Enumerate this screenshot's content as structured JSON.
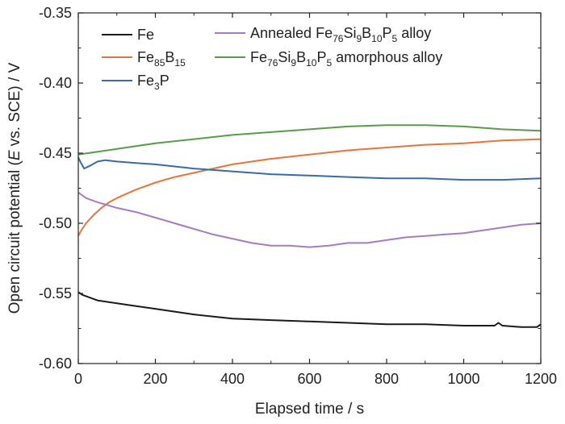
{
  "chart_data": {
    "type": "line",
    "xlabel": "Elapsed time / s",
    "ylabel_parts": [
      {
        "t": "Open circuit potential ("
      },
      {
        "t": "E",
        "italic": true
      },
      {
        "t": " vs. SCE) / V"
      }
    ],
    "xlim": [
      0,
      1200
    ],
    "ylim": [
      -0.6,
      -0.35
    ],
    "x_ticks": [
      0,
      200,
      400,
      600,
      800,
      1000,
      1200
    ],
    "y_ticks": [
      -0.6,
      -0.55,
      -0.5,
      -0.45,
      -0.4,
      -0.35
    ],
    "x_tick_labels": [
      "0",
      "200",
      "400",
      "600",
      "800",
      "1000",
      "1200"
    ],
    "y_tick_labels": [
      "-0.60",
      "-0.55",
      "-0.50",
      "-0.45",
      "-0.40",
      "-0.35"
    ],
    "grid": false,
    "legend_position": "top",
    "series": [
      {
        "id": "fe",
        "label_parts": [
          {
            "t": "Fe"
          }
        ],
        "color": "#1a1a1a",
        "points": [
          [
            0,
            -0.549
          ],
          [
            10,
            -0.551
          ],
          [
            30,
            -0.553
          ],
          [
            50,
            -0.555
          ],
          [
            100,
            -0.557
          ],
          [
            150,
            -0.559
          ],
          [
            200,
            -0.561
          ],
          [
            300,
            -0.565
          ],
          [
            400,
            -0.568
          ],
          [
            500,
            -0.569
          ],
          [
            600,
            -0.57
          ],
          [
            700,
            -0.571
          ],
          [
            800,
            -0.572
          ],
          [
            900,
            -0.572
          ],
          [
            1000,
            -0.573
          ],
          [
            1080,
            -0.573
          ],
          [
            1090,
            -0.571
          ],
          [
            1100,
            -0.573
          ],
          [
            1150,
            -0.574
          ],
          [
            1190,
            -0.574
          ],
          [
            1200,
            -0.572
          ]
        ]
      },
      {
        "id": "fe85b15",
        "label_parts": [
          {
            "t": "Fe"
          },
          {
            "t": "85",
            "sub": true
          },
          {
            "t": "B"
          },
          {
            "t": "15",
            "sub": true
          }
        ],
        "color": "#e8743b",
        "points": [
          [
            0,
            -0.509
          ],
          [
            10,
            -0.504
          ],
          [
            20,
            -0.5
          ],
          [
            40,
            -0.494
          ],
          [
            60,
            -0.489
          ],
          [
            80,
            -0.485
          ],
          [
            100,
            -0.482
          ],
          [
            150,
            -0.476
          ],
          [
            200,
            -0.471
          ],
          [
            250,
            -0.467
          ],
          [
            300,
            -0.464
          ],
          [
            350,
            -0.461
          ],
          [
            400,
            -0.458
          ],
          [
            500,
            -0.454
          ],
          [
            600,
            -0.451
          ],
          [
            700,
            -0.448
          ],
          [
            800,
            -0.446
          ],
          [
            900,
            -0.444
          ],
          [
            1000,
            -0.443
          ],
          [
            1100,
            -0.441
          ],
          [
            1200,
            -0.44
          ]
        ]
      },
      {
        "id": "fe3p",
        "label_parts": [
          {
            "t": "Fe"
          },
          {
            "t": "3",
            "sub": true
          },
          {
            "t": "P"
          }
        ],
        "color": "#3a6aa8",
        "points": [
          [
            0,
            -0.453
          ],
          [
            5,
            -0.456
          ],
          [
            15,
            -0.461
          ],
          [
            30,
            -0.459
          ],
          [
            50,
            -0.456
          ],
          [
            70,
            -0.455
          ],
          [
            100,
            -0.456
          ],
          [
            150,
            -0.457
          ],
          [
            200,
            -0.458
          ],
          [
            300,
            -0.461
          ],
          [
            400,
            -0.463
          ],
          [
            500,
            -0.465
          ],
          [
            600,
            -0.466
          ],
          [
            700,
            -0.467
          ],
          [
            800,
            -0.468
          ],
          [
            900,
            -0.468
          ],
          [
            1000,
            -0.469
          ],
          [
            1100,
            -0.469
          ],
          [
            1200,
            -0.468
          ]
        ]
      },
      {
        "id": "annealed",
        "label_parts": [
          {
            "t": "Annealed Fe"
          },
          {
            "t": "76",
            "sub": true
          },
          {
            "t": "Si"
          },
          {
            "t": "9",
            "sub": true
          },
          {
            "t": "B"
          },
          {
            "t": "10",
            "sub": true
          },
          {
            "t": "P"
          },
          {
            "t": "5",
            "sub": true
          },
          {
            "t": " alloy"
          }
        ],
        "color": "#a57cc4",
        "points": [
          [
            0,
            -0.478
          ],
          [
            20,
            -0.482
          ],
          [
            50,
            -0.485
          ],
          [
            100,
            -0.489
          ],
          [
            150,
            -0.492
          ],
          [
            200,
            -0.496
          ],
          [
            250,
            -0.5
          ],
          [
            300,
            -0.504
          ],
          [
            350,
            -0.508
          ],
          [
            400,
            -0.511
          ],
          [
            450,
            -0.514
          ],
          [
            500,
            -0.516
          ],
          [
            550,
            -0.516
          ],
          [
            600,
            -0.517
          ],
          [
            650,
            -0.516
          ],
          [
            700,
            -0.514
          ],
          [
            750,
            -0.514
          ],
          [
            800,
            -0.512
          ],
          [
            850,
            -0.51
          ],
          [
            900,
            -0.509
          ],
          [
            950,
            -0.508
          ],
          [
            1000,
            -0.507
          ],
          [
            1050,
            -0.505
          ],
          [
            1100,
            -0.503
          ],
          [
            1150,
            -0.501
          ],
          [
            1200,
            -0.5
          ]
        ]
      },
      {
        "id": "amorphous",
        "label_parts": [
          {
            "t": "Fe"
          },
          {
            "t": "76",
            "sub": true
          },
          {
            "t": "Si"
          },
          {
            "t": "9",
            "sub": true
          },
          {
            "t": "B"
          },
          {
            "t": "10",
            "sub": true
          },
          {
            "t": "P"
          },
          {
            "t": "5",
            "sub": true
          },
          {
            "t": " amorphous alloy"
          }
        ],
        "color": "#5a9a4c",
        "points": [
          [
            0,
            -0.451
          ],
          [
            50,
            -0.449
          ],
          [
            100,
            -0.447
          ],
          [
            200,
            -0.443
          ],
          [
            300,
            -0.44
          ],
          [
            400,
            -0.437
          ],
          [
            500,
            -0.435
          ],
          [
            600,
            -0.433
          ],
          [
            700,
            -0.431
          ],
          [
            800,
            -0.43
          ],
          [
            850,
            -0.43
          ],
          [
            900,
            -0.43
          ],
          [
            1000,
            -0.431
          ],
          [
            1100,
            -0.433
          ],
          [
            1200,
            -0.434
          ]
        ]
      }
    ]
  }
}
